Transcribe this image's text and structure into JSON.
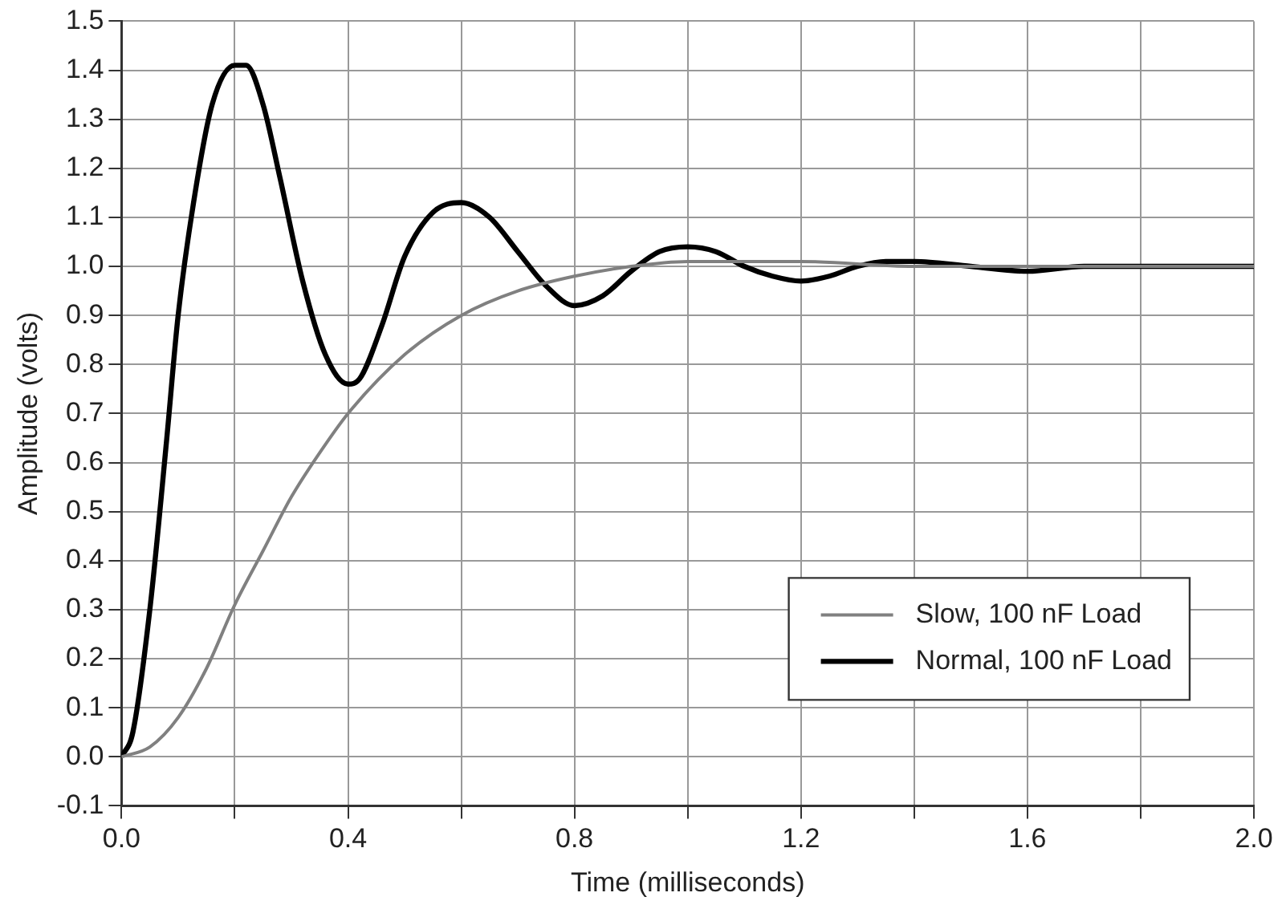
{
  "chart_data": {
    "type": "line",
    "xlabel": "Time (milliseconds)",
    "ylabel": "Amplitude (volts)",
    "xlim": [
      0,
      2
    ],
    "ylim": [
      -0.1,
      1.5
    ],
    "xticks": [
      {
        "value": 0,
        "label": "0.0"
      },
      {
        "value": 0.2,
        "label": null
      },
      0.4,
      {
        "value": 0.6,
        "label": null
      },
      0.8,
      {
        "value": 1,
        "label": null
      },
      1.2,
      {
        "value": 1.4,
        "label": null
      },
      1.6,
      {
        "value": 1.8,
        "label": null
      },
      {
        "value": 2,
        "label": "2.0"
      }
    ],
    "yticks": [
      -0.1,
      {
        "value": 0,
        "label": "0.0"
      },
      0.1,
      0.2,
      0.3,
      0.4,
      0.5,
      0.6,
      0.7,
      0.8,
      0.9,
      {
        "value": 1,
        "label": "1.0"
      },
      1.1,
      1.2,
      1.3,
      1.4,
      1.5
    ],
    "grid": true,
    "legend": "bottom right",
    "marker": "none",
    "line_style": "solid",
    "series": [
      {
        "name": "Slow, 100 nF Load",
        "color": "#808080",
        "x": [
          0,
          0.05,
          0.1,
          0.15,
          0.2,
          0.25,
          0.3,
          0.35,
          0.4,
          0.5,
          0.6,
          0.7,
          0.8,
          0.9,
          1.0,
          1.2,
          1.4,
          1.6,
          2.0
        ],
        "values": [
          0,
          0.02,
          0.08,
          0.18,
          0.31,
          0.42,
          0.53,
          0.62,
          0.7,
          0.82,
          0.9,
          0.95,
          0.98,
          1.0,
          1.01,
          1.01,
          1.0,
          1.0,
          1.0
        ]
      },
      {
        "name": "Normal, 100 nF Load",
        "color": "#000000",
        "x": [
          0,
          0.02,
          0.05,
          0.08,
          0.1,
          0.13,
          0.16,
          0.2,
          0.22,
          0.25,
          0.28,
          0.32,
          0.36,
          0.4,
          0.42,
          0.46,
          0.5,
          0.55,
          0.6,
          0.65,
          0.7,
          0.75,
          0.8,
          0.85,
          0.9,
          0.95,
          1.0,
          1.05,
          1.1,
          1.15,
          1.2,
          1.25,
          1.3,
          1.35,
          1.4,
          1.5,
          1.6,
          1.7,
          1.8,
          1.9,
          2.0
        ],
        "values": [
          0,
          0.05,
          0.3,
          0.65,
          0.9,
          1.15,
          1.33,
          1.41,
          1.41,
          1.33,
          1.18,
          0.97,
          0.82,
          0.76,
          0.77,
          0.88,
          1.02,
          1.11,
          1.13,
          1.1,
          1.03,
          0.96,
          0.92,
          0.94,
          0.99,
          1.03,
          1.04,
          1.03,
          1.0,
          0.98,
          0.97,
          0.98,
          1.0,
          1.01,
          1.01,
          1.0,
          0.99,
          1.0,
          1.0,
          1.0,
          1.0
        ]
      }
    ]
  }
}
